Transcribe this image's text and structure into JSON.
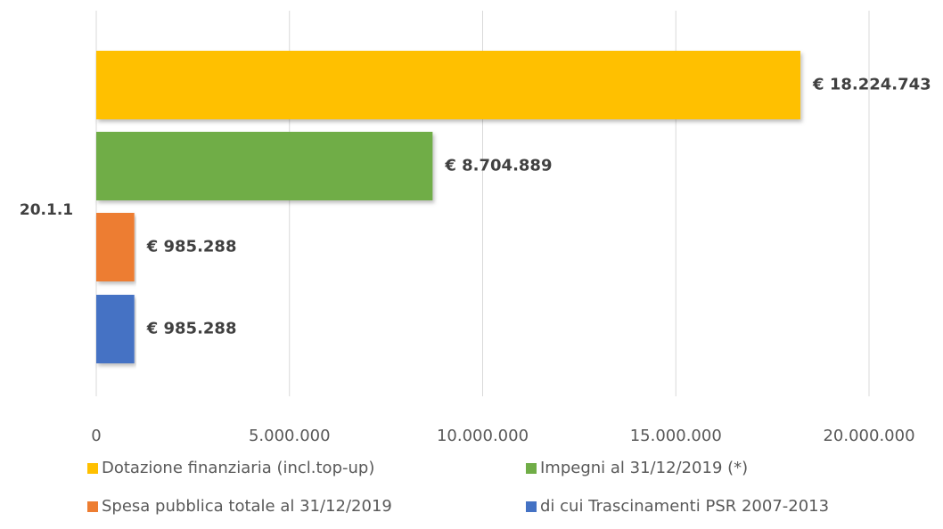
{
  "chart_data": {
    "type": "bar",
    "orientation": "horizontal",
    "categories": [
      "20.1.1"
    ],
    "series": [
      {
        "name": "Dotazione finanziaria (incl.top-up)",
        "color": "#ffc000",
        "values": [
          18224743
        ],
        "value_labels": [
          "€ 18.224.743"
        ]
      },
      {
        "name": "Impegni al 31/12/2019 (*)",
        "color": "#70ad47",
        "values": [
          8704889
        ],
        "value_labels": [
          "€ 8.704.889"
        ]
      },
      {
        "name": "Spesa pubblica totale al 31/12/2019",
        "color": "#ed7d31",
        "values": [
          985288
        ],
        "value_labels": [
          "€ 985.288"
        ]
      },
      {
        "name": "di cui Trascinamenti PSR 2007-2013",
        "color": "#4472c4",
        "values": [
          985288
        ],
        "value_labels": [
          "€ 985.288"
        ]
      }
    ],
    "xlim": [
      0,
      20000000
    ],
    "xticks": [
      0,
      {
        "value": 5000000,
        "label": "5.000.000"
      },
      {
        "value": 10000000,
        "label": "10.000.000"
      },
      {
        "value": 15000000,
        "label": "15.000.000"
      },
      {
        "value": 20000000,
        "label": "20.000.000"
      }
    ],
    "grid": true,
    "legend": "bottom"
  }
}
